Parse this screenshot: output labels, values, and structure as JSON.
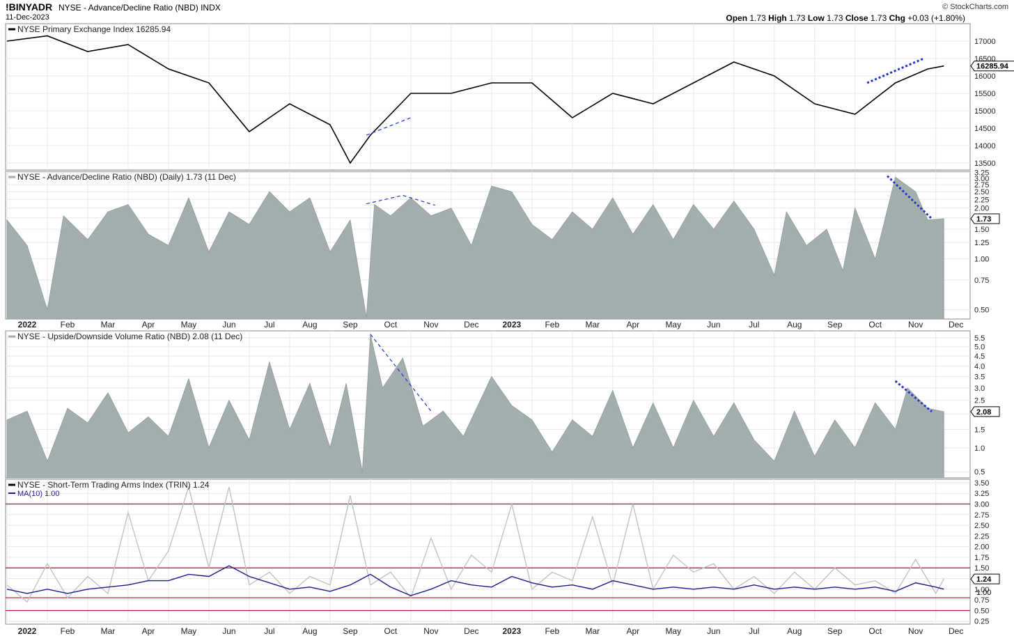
{
  "header": {
    "symbol": "!BINYADR",
    "description": "NYSE - Advance/Decline Ratio (NBD)",
    "exchange": "INDX",
    "date": "11-Dec-2023",
    "brand": "© StockCharts.com",
    "ohlc": {
      "open_label": "Open",
      "open": "1.73",
      "high_label": "High",
      "high": "1.73",
      "low_label": "Low",
      "low": "1.73",
      "close_label": "Close",
      "close": "1.73",
      "chg_label": "Chg",
      "chg": "+0.03 (+1.80%)"
    }
  },
  "colors": {
    "price_line": "#000000",
    "area_fill": "#a3aeae",
    "area_edge": "#8f9a9a",
    "trend_dash": "#2233cc",
    "trin_line": "#c2c2c2",
    "trin_ma": "#1a1a8c",
    "threshold": "#b01030",
    "grid": "#e8e8e8"
  },
  "x_axis": {
    "labels": [
      "2022",
      "Feb",
      "Mar",
      "Apr",
      "May",
      "Jun",
      "Jul",
      "Aug",
      "Sep",
      "Oct",
      "Nov",
      "Dec",
      "2023",
      "Feb",
      "Mar",
      "Apr",
      "May",
      "Jun",
      "Jul",
      "Aug",
      "Sep",
      "Oct",
      "Nov",
      "Dec"
    ],
    "bold": [
      "2022",
      "2023"
    ]
  },
  "chart_data": [
    {
      "type": "line",
      "label": "NYSE Primary Exchange Index 16285.94",
      "last_value": "16285.94",
      "yticks": [
        13500,
        14000,
        14500,
        15000,
        15500,
        16000,
        16500,
        17000
      ],
      "ylim": [
        13300,
        17500
      ],
      "x_months": [
        0,
        1,
        2,
        3,
        4,
        5,
        6,
        7,
        8,
        8.5,
        9,
        10,
        11,
        12,
        13,
        14,
        15,
        16,
        17,
        18,
        19,
        20,
        21,
        22,
        22.8,
        23.2
      ],
      "values": [
        17000,
        17150,
        16700,
        16900,
        16200,
        15800,
        14400,
        15200,
        14600,
        13500,
        14300,
        15500,
        15500,
        15800,
        15800,
        14800,
        15500,
        15200,
        15800,
        16400,
        16000,
        15200,
        14900,
        15800,
        16200,
        16285.94
      ],
      "trendlines": [
        {
          "x": [
            8.9,
            10.0
          ],
          "y": [
            14300,
            14800
          ]
        },
        {
          "x": [
            21.3,
            22.7
          ],
          "y": [
            15800,
            16500
          ]
        }
      ]
    },
    {
      "type": "area",
      "label": "NYSE - Advance/Decline Ratio (NBD) (Daily) 1.73 (11 Dec)",
      "last_value": "1.73",
      "scale": "log",
      "yticks": [
        0.5,
        0.75,
        1.0,
        1.25,
        1.5,
        1.75,
        2.0,
        2.25,
        2.5,
        2.75,
        3.0,
        3.25
      ],
      "ytick_labels": [
        "0.50",
        "0.75",
        "1.00",
        "1.25",
        "1.50",
        "",
        "2.00",
        "2.25",
        "2.50",
        "2.75",
        "3.00",
        "3.25"
      ],
      "ylim": [
        0.44,
        3.3
      ],
      "x_months": [
        0,
        0.5,
        1,
        1.4,
        2,
        2.5,
        3,
        3.5,
        4,
        4.5,
        5,
        5.5,
        6,
        6.5,
        7,
        7.5,
        8,
        8.5,
        8.9,
        9.1,
        9.5,
        10,
        10.5,
        11,
        11.5,
        12,
        12.5,
        13,
        13.5,
        14,
        14.5,
        15,
        15.5,
        16,
        16.5,
        17,
        17.5,
        18,
        18.5,
        19,
        19.3,
        19.8,
        20.3,
        20.7,
        21,
        21.5,
        22,
        22.5,
        22.8,
        23.2
      ],
      "values": [
        1.7,
        1.2,
        0.5,
        1.8,
        1.3,
        1.9,
        2.1,
        1.4,
        1.2,
        2.3,
        1.1,
        1.9,
        1.6,
        2.5,
        1.9,
        2.3,
        1.1,
        1.7,
        0.45,
        2.1,
        1.8,
        2.3,
        1.8,
        2.0,
        1.2,
        2.7,
        2.5,
        1.6,
        1.3,
        1.9,
        1.5,
        2.3,
        1.4,
        2.1,
        1.3,
        2.1,
        1.5,
        2.2,
        1.5,
        0.8,
        1.9,
        1.2,
        1.5,
        0.85,
        2.0,
        1.0,
        3.05,
        2.5,
        1.7,
        1.73
      ],
      "trendlines": [
        {
          "x": [
            8.9,
            9.8,
            10.6
          ],
          "y": [
            2.12,
            2.38,
            2.08
          ]
        },
        {
          "x": [
            21.8,
            22.9
          ],
          "y": [
            3.1,
            1.73
          ]
        }
      ]
    },
    {
      "type": "area",
      "label": "NYSE - Upside/Downside Volume Ratio (NBD) 2.08 (11 Dec)",
      "last_value": "2.08",
      "scale": "sqrt",
      "yticks": [
        0.5,
        1.0,
        1.5,
        2.0,
        2.5,
        3.0,
        3.5,
        4.0,
        4.5,
        5.0,
        5.5
      ],
      "ylim": [
        0.4,
        5.9
      ],
      "x_months": [
        0,
        0.5,
        1,
        1.5,
        2,
        2.5,
        3,
        3.5,
        4,
        4.5,
        5,
        5.5,
        6,
        6.5,
        7,
        7.5,
        8,
        8.4,
        8.8,
        9.0,
        9.3,
        9.8,
        10.3,
        10.8,
        11.3,
        12,
        12.5,
        13,
        13.5,
        14,
        14.5,
        15,
        15.5,
        16,
        16.5,
        17,
        17.5,
        18,
        18.5,
        19,
        19.5,
        20,
        20.5,
        21,
        21.5,
        22,
        22.3,
        22.8,
        23.2
      ],
      "values": [
        1.8,
        2.1,
        0.7,
        2.2,
        1.7,
        2.8,
        1.4,
        1.9,
        1.3,
        3.4,
        1.0,
        2.5,
        1.2,
        4.2,
        1.5,
        3.2,
        1.0,
        3.2,
        0.5,
        5.7,
        3.0,
        4.4,
        1.6,
        2.1,
        1.3,
        3.5,
        2.3,
        1.8,
        0.9,
        1.8,
        1.3,
        2.9,
        1.0,
        2.4,
        1.0,
        2.5,
        1.3,
        2.4,
        1.2,
        0.7,
        2.1,
        0.8,
        1.8,
        1.0,
        2.4,
        1.5,
        3.0,
        2.2,
        2.08
      ],
      "trendlines": [
        {
          "x": [
            9.0,
            10.5
          ],
          "y": [
            5.7,
            2.1
          ]
        },
        {
          "x": [
            22.0,
            22.9
          ],
          "y": [
            3.3,
            2.08
          ]
        }
      ]
    },
    {
      "type": "line",
      "label": "NYSE - Short-Term Trading Arms Index (TRIN) 1.24",
      "ma_label": "MA(10) 1.00",
      "last_value": "1.24",
      "ma_last_value": "1.00",
      "yticks": [
        0.25,
        0.5,
        0.75,
        1.0,
        1.25,
        1.5,
        1.75,
        2.0,
        2.25,
        2.5,
        2.75,
        3.0,
        3.25,
        3.5
      ],
      "ylim": [
        0.18,
        3.58
      ],
      "thresholds": [
        0.5,
        0.8,
        1.5,
        3.0
      ],
      "x_months": [
        0,
        0.5,
        1,
        1.5,
        2,
        2.5,
        3,
        3.5,
        4,
        4.5,
        5,
        5.5,
        6,
        6.5,
        7,
        7.5,
        8,
        8.5,
        9,
        9.5,
        10,
        10.5,
        11,
        11.5,
        12,
        12.5,
        13,
        13.5,
        14,
        14.5,
        15,
        15.5,
        16,
        16.5,
        17,
        17.5,
        18,
        18.5,
        19,
        19.5,
        20,
        20.5,
        21,
        21.5,
        22,
        22.5,
        23,
        23.2
      ],
      "values": [
        1.1,
        0.7,
        1.6,
        0.8,
        1.3,
        0.9,
        2.8,
        1.2,
        1.9,
        3.4,
        1.5,
        3.4,
        1.1,
        1.4,
        0.9,
        1.3,
        1.1,
        3.2,
        1.1,
        1.4,
        0.8,
        2.2,
        1.0,
        1.8,
        1.4,
        3.0,
        1.0,
        1.4,
        1.2,
        2.7,
        1.1,
        3.0,
        1.0,
        1.8,
        1.4,
        1.6,
        1.0,
        1.3,
        0.9,
        1.4,
        1.0,
        1.5,
        1.1,
        1.2,
        0.9,
        1.7,
        0.9,
        1.24
      ],
      "ma_values": [
        1.0,
        0.9,
        1.0,
        0.9,
        1.0,
        1.05,
        1.1,
        1.2,
        1.2,
        1.35,
        1.3,
        1.55,
        1.3,
        1.15,
        1.0,
        1.05,
        0.95,
        1.1,
        1.35,
        1.05,
        0.85,
        1.0,
        1.2,
        1.1,
        1.05,
        1.3,
        1.15,
        1.05,
        1.1,
        1.0,
        1.2,
        1.1,
        1.0,
        1.05,
        1.0,
        1.05,
        1.0,
        1.1,
        1.0,
        1.05,
        1.0,
        1.05,
        1.0,
        1.05,
        0.95,
        1.15,
        1.05,
        1.0
      ]
    }
  ]
}
